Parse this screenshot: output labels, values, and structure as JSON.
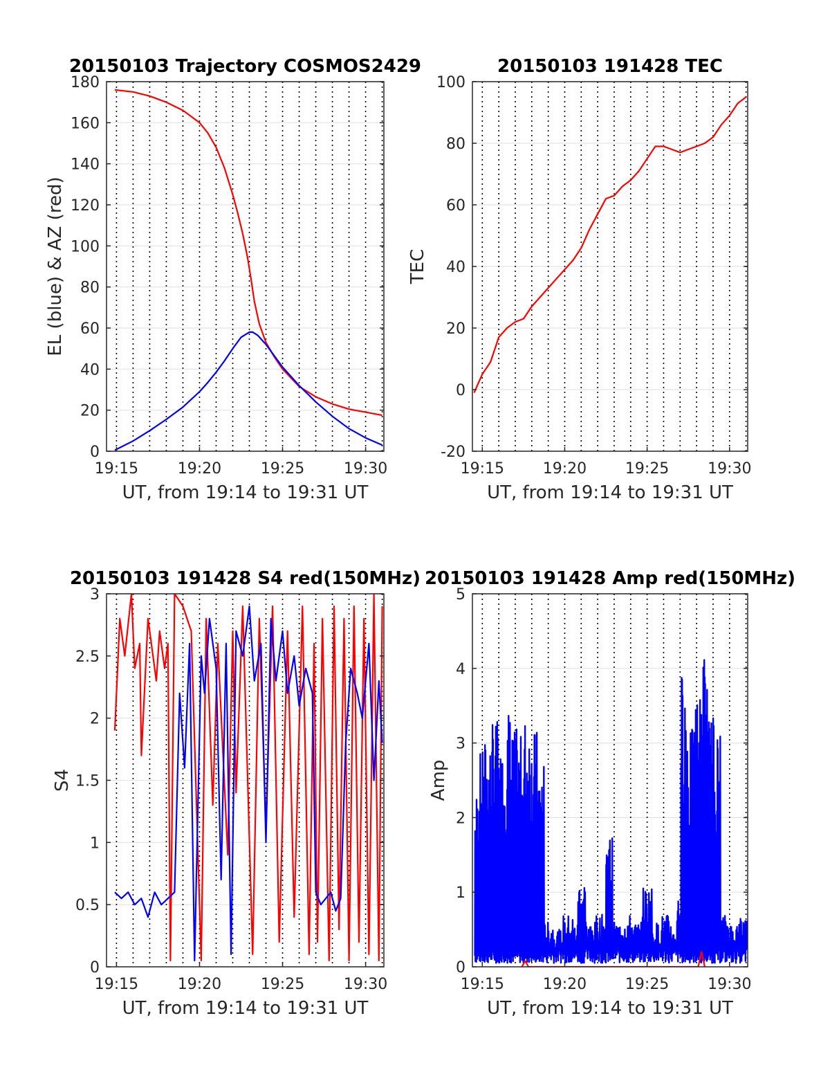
{
  "chart_data": [
    {
      "id": "trajectory",
      "type": "line",
      "title": "20150103 Trajectory COSMOS2429",
      "xlabel": "UT, from 19:14 to 19:31 UT",
      "ylabel": "EL (blue) & AZ (red)",
      "xlim": [
        14.4,
        31.1
      ],
      "ylim": [
        0,
        180
      ],
      "yticks": [
        0,
        20,
        40,
        60,
        80,
        100,
        120,
        140,
        160,
        180
      ],
      "xticks": [
        15,
        20,
        25,
        30
      ],
      "xticklabels": [
        "19:15",
        "19:20",
        "19:25",
        "19:30"
      ],
      "grid": "dotted vertical lines every minute, light horizontal gridlines",
      "series": [
        {
          "color": "#ff0000",
          "x": [
            14.9,
            16,
            17,
            18,
            19,
            19.5,
            20,
            20.5,
            21,
            21.5,
            22,
            22.3,
            22.6,
            22.9,
            23.1,
            23.3,
            23.6,
            24,
            24.5,
            25,
            26,
            27,
            28,
            29,
            30,
            31
          ],
          "y": [
            176,
            175,
            173,
            170,
            166,
            163,
            160,
            155,
            148,
            138,
            125,
            116,
            106,
            94,
            84,
            73,
            62,
            53,
            46,
            40,
            31.5,
            26.5,
            23,
            20.5,
            19,
            17.5
          ]
        },
        {
          "color": "#0000ff",
          "x": [
            14.9,
            16,
            17,
            18,
            19,
            20,
            20.5,
            21,
            21.5,
            22,
            22.5,
            23,
            23.2,
            23.5,
            24,
            24.5,
            25,
            26,
            27,
            28,
            29,
            30,
            31
          ],
          "y": [
            0.5,
            5,
            10,
            15.5,
            21.5,
            29,
            33.5,
            38.5,
            44,
            50,
            55.5,
            58,
            58,
            56.5,
            52,
            46.5,
            41,
            32,
            24,
            17,
            11,
            6.5,
            3
          ]
        }
      ]
    },
    {
      "id": "tec",
      "type": "line",
      "title": "20150103 191428 TEC",
      "xlabel": "UT, from 19:14 to 19:31 UT",
      "ylabel": "TEC",
      "xlim": [
        14.4,
        31.1
      ],
      "ylim": [
        -20,
        100
      ],
      "yticks": [
        -20,
        0,
        20,
        40,
        60,
        80,
        100
      ],
      "xticks": [
        15,
        20,
        25,
        30
      ],
      "xticklabels": [
        "19:15",
        "19:20",
        "19:25",
        "19:30"
      ],
      "grid": "dotted vertical lines every minute, light horizontal gridlines",
      "series": [
        {
          "color": "#ff0000",
          "x": [
            14.5,
            15,
            15.5,
            16,
            16.5,
            17,
            17.5,
            18,
            18.5,
            19,
            19.5,
            20,
            20.5,
            21,
            21.5,
            22,
            22.5,
            23,
            23.5,
            24,
            24.5,
            25,
            25.5,
            26,
            26.5,
            27,
            27.5,
            28,
            28.5,
            29,
            29.5,
            30,
            30.5,
            31
          ],
          "y": [
            -1,
            5,
            9,
            17,
            20,
            22,
            23,
            27,
            30,
            33,
            36,
            39,
            42,
            46,
            52,
            57,
            62,
            63,
            66,
            68,
            71,
            75,
            79,
            79,
            78,
            77,
            78,
            79,
            80,
            82,
            86,
            89,
            93,
            95
          ]
        }
      ]
    },
    {
      "id": "s4",
      "type": "line",
      "title": "20150103 191428 S4 red(150MHz)",
      "xlabel": "UT, from 19:14 to 19:31 UT",
      "ylabel": "S4",
      "xlim": [
        14.4,
        31.1
      ],
      "ylim": [
        0,
        3
      ],
      "yticks": [
        0,
        0.5,
        1,
        1.5,
        2,
        2.5,
        3
      ],
      "xticks": [
        15,
        20,
        25,
        30
      ],
      "xticklabels": [
        "19:15",
        "19:20",
        "19:25",
        "19:30"
      ],
      "grid": "dotted vertical lines every minute, light horizontal gridlines",
      "series": [
        {
          "color": "#ff0000",
          "x": [
            14.9,
            15.1,
            15.2,
            15.5,
            15.9,
            16.1,
            16.4,
            16.5,
            16.9,
            17.4,
            17.6,
            17.9,
            18.1,
            18.25,
            18.5,
            19.0,
            19.5,
            20.1,
            20.4,
            20.8,
            21.1,
            21.7,
            22.0,
            22.2,
            22.6,
            23.2,
            23.6,
            24.0,
            24.4,
            24.8,
            25.3,
            25.7,
            26.2,
            26.6,
            26.9,
            27.1,
            27.4,
            27.8,
            28.1,
            28.4,
            28.7,
            29.0,
            29.3,
            29.6,
            29.9,
            30.2,
            30.5,
            30.8,
            31.0
          ],
          "y": [
            1.9,
            2.5,
            2.8,
            2.5,
            3.0,
            2.4,
            2.6,
            1.7,
            2.8,
            2.3,
            2.7,
            2.4,
            2.6,
            0.05,
            3.0,
            2.9,
            2.7,
            0.05,
            2.8,
            1.3,
            2.6,
            0.9,
            2.7,
            1.4,
            2.9,
            0.1,
            2.8,
            1.1,
            2.9,
            0.2,
            2.7,
            0.4,
            2.9,
            0.1,
            2.6,
            0.2,
            2.8,
            0.05,
            2.9,
            0.3,
            2.8,
            0.05,
            2.9,
            0.2,
            2.8,
            0.1,
            3.0,
            0.05,
            2.9
          ]
        },
        {
          "color": "#0000ff",
          "x": [
            14.9,
            15.3,
            15.7,
            16.1,
            16.5,
            16.9,
            17.3,
            17.7,
            18.1,
            18.5,
            18.8,
            19.1,
            19.4,
            19.7,
            20.1,
            20.3,
            20.6,
            21.0,
            21.3,
            21.6,
            21.9,
            22.2,
            22.6,
            23.0,
            23.3,
            23.7,
            24.0,
            24.3,
            24.6,
            25.0,
            25.3,
            25.7,
            26.0,
            26.4,
            26.8,
            27.0,
            27.3,
            27.6,
            27.9,
            28.2,
            28.5,
            28.8,
            29.1,
            29.5,
            29.8,
            30.2,
            30.5,
            30.8,
            31.0
          ],
          "y": [
            0.6,
            0.55,
            0.6,
            0.5,
            0.55,
            0.4,
            0.6,
            0.5,
            0.55,
            0.6,
            2.2,
            1.6,
            2.6,
            0.05,
            2.5,
            2.2,
            2.8,
            2.4,
            0.7,
            2.6,
            0.1,
            2.7,
            2.5,
            2.9,
            2.3,
            2.6,
            1.0,
            2.8,
            2.3,
            2.7,
            2.2,
            2.5,
            2.1,
            2.4,
            2.2,
            0.6,
            0.5,
            0.55,
            0.6,
            0.45,
            0.55,
            1.8,
            2.4,
            2.2,
            2.0,
            2.6,
            1.5,
            2.3,
            1.8
          ]
        }
      ]
    },
    {
      "id": "amp",
      "type": "line",
      "title": "20150103 191428 Amp red(150MHz)",
      "xlabel": "UT, from 19:14 to 19:31 UT",
      "ylabel": "Amp",
      "xlim": [
        14.4,
        31.1
      ],
      "ylim": [
        0,
        5
      ],
      "yticks": [
        0,
        1,
        2,
        3,
        4,
        5
      ],
      "xticks": [
        15,
        20,
        25,
        30
      ],
      "xticklabels": [
        "19:15",
        "19:20",
        "19:25",
        "19:30"
      ],
      "grid": "dotted vertical lines every minute, light horizontal gridlines",
      "series": [
        {
          "color": "#0000ff",
          "x": [
            14.55,
            14.75,
            14.95,
            15.15,
            15.35,
            15.55,
            15.75,
            15.95,
            16.15,
            16.35,
            16.55,
            16.75,
            16.95,
            17.15,
            17.35,
            17.55,
            17.75,
            17.95,
            18.15,
            18.35,
            18.55,
            18.75,
            19.0,
            19.3,
            19.6,
            19.9,
            20.2,
            20.5,
            20.8,
            21.0,
            21.3,
            21.6,
            21.9,
            22.2,
            22.5,
            22.7,
            22.9,
            23.2,
            23.5,
            23.8,
            24.1,
            24.4,
            24.7,
            25.0,
            25.3,
            25.6,
            25.9,
            26.2,
            26.5,
            26.8,
            27.05,
            27.25,
            27.45,
            27.65,
            27.85,
            28.05,
            28.25,
            28.45,
            28.65,
            28.85,
            29.05,
            29.25,
            29.45,
            29.7,
            30.0,
            30.3,
            30.6,
            30.9,
            31.05
          ],
          "y": [
            2.4,
            0.05,
            2.9,
            0.1,
            3.1,
            0.05,
            3.3,
            0.1,
            3.0,
            0.05,
            3.5,
            0.1,
            3.2,
            0.05,
            3.1,
            0.1,
            3.4,
            0.05,
            3.2,
            0.1,
            2.8,
            0.1,
            0.6,
            0.05,
            0.5,
            0.1,
            0.7,
            0.05,
            0.6,
            1.2,
            0.05,
            0.6,
            0.1,
            0.7,
            0.05,
            1.8,
            0.1,
            0.6,
            0.05,
            0.7,
            0.1,
            0.6,
            0.05,
            1.1,
            0.1,
            0.6,
            0.05,
            0.7,
            0.1,
            0.5,
            1.0,
            4.0,
            0.2,
            3.2,
            0.3,
            3.7,
            0.2,
            4.3,
            0.2,
            3.4,
            0.1,
            3.2,
            0.05,
            0.7,
            0.1,
            0.6,
            0.05,
            0.7,
            0.3
          ],
          "style": "dense"
        },
        {
          "color": "#ff0000",
          "x": [
            17.4,
            17.6,
            17.8,
            28.1,
            28.3,
            28.5
          ],
          "y": [
            0,
            0.08,
            0,
            0,
            0.2,
            0
          ],
          "style": "baseline"
        }
      ]
    }
  ]
}
